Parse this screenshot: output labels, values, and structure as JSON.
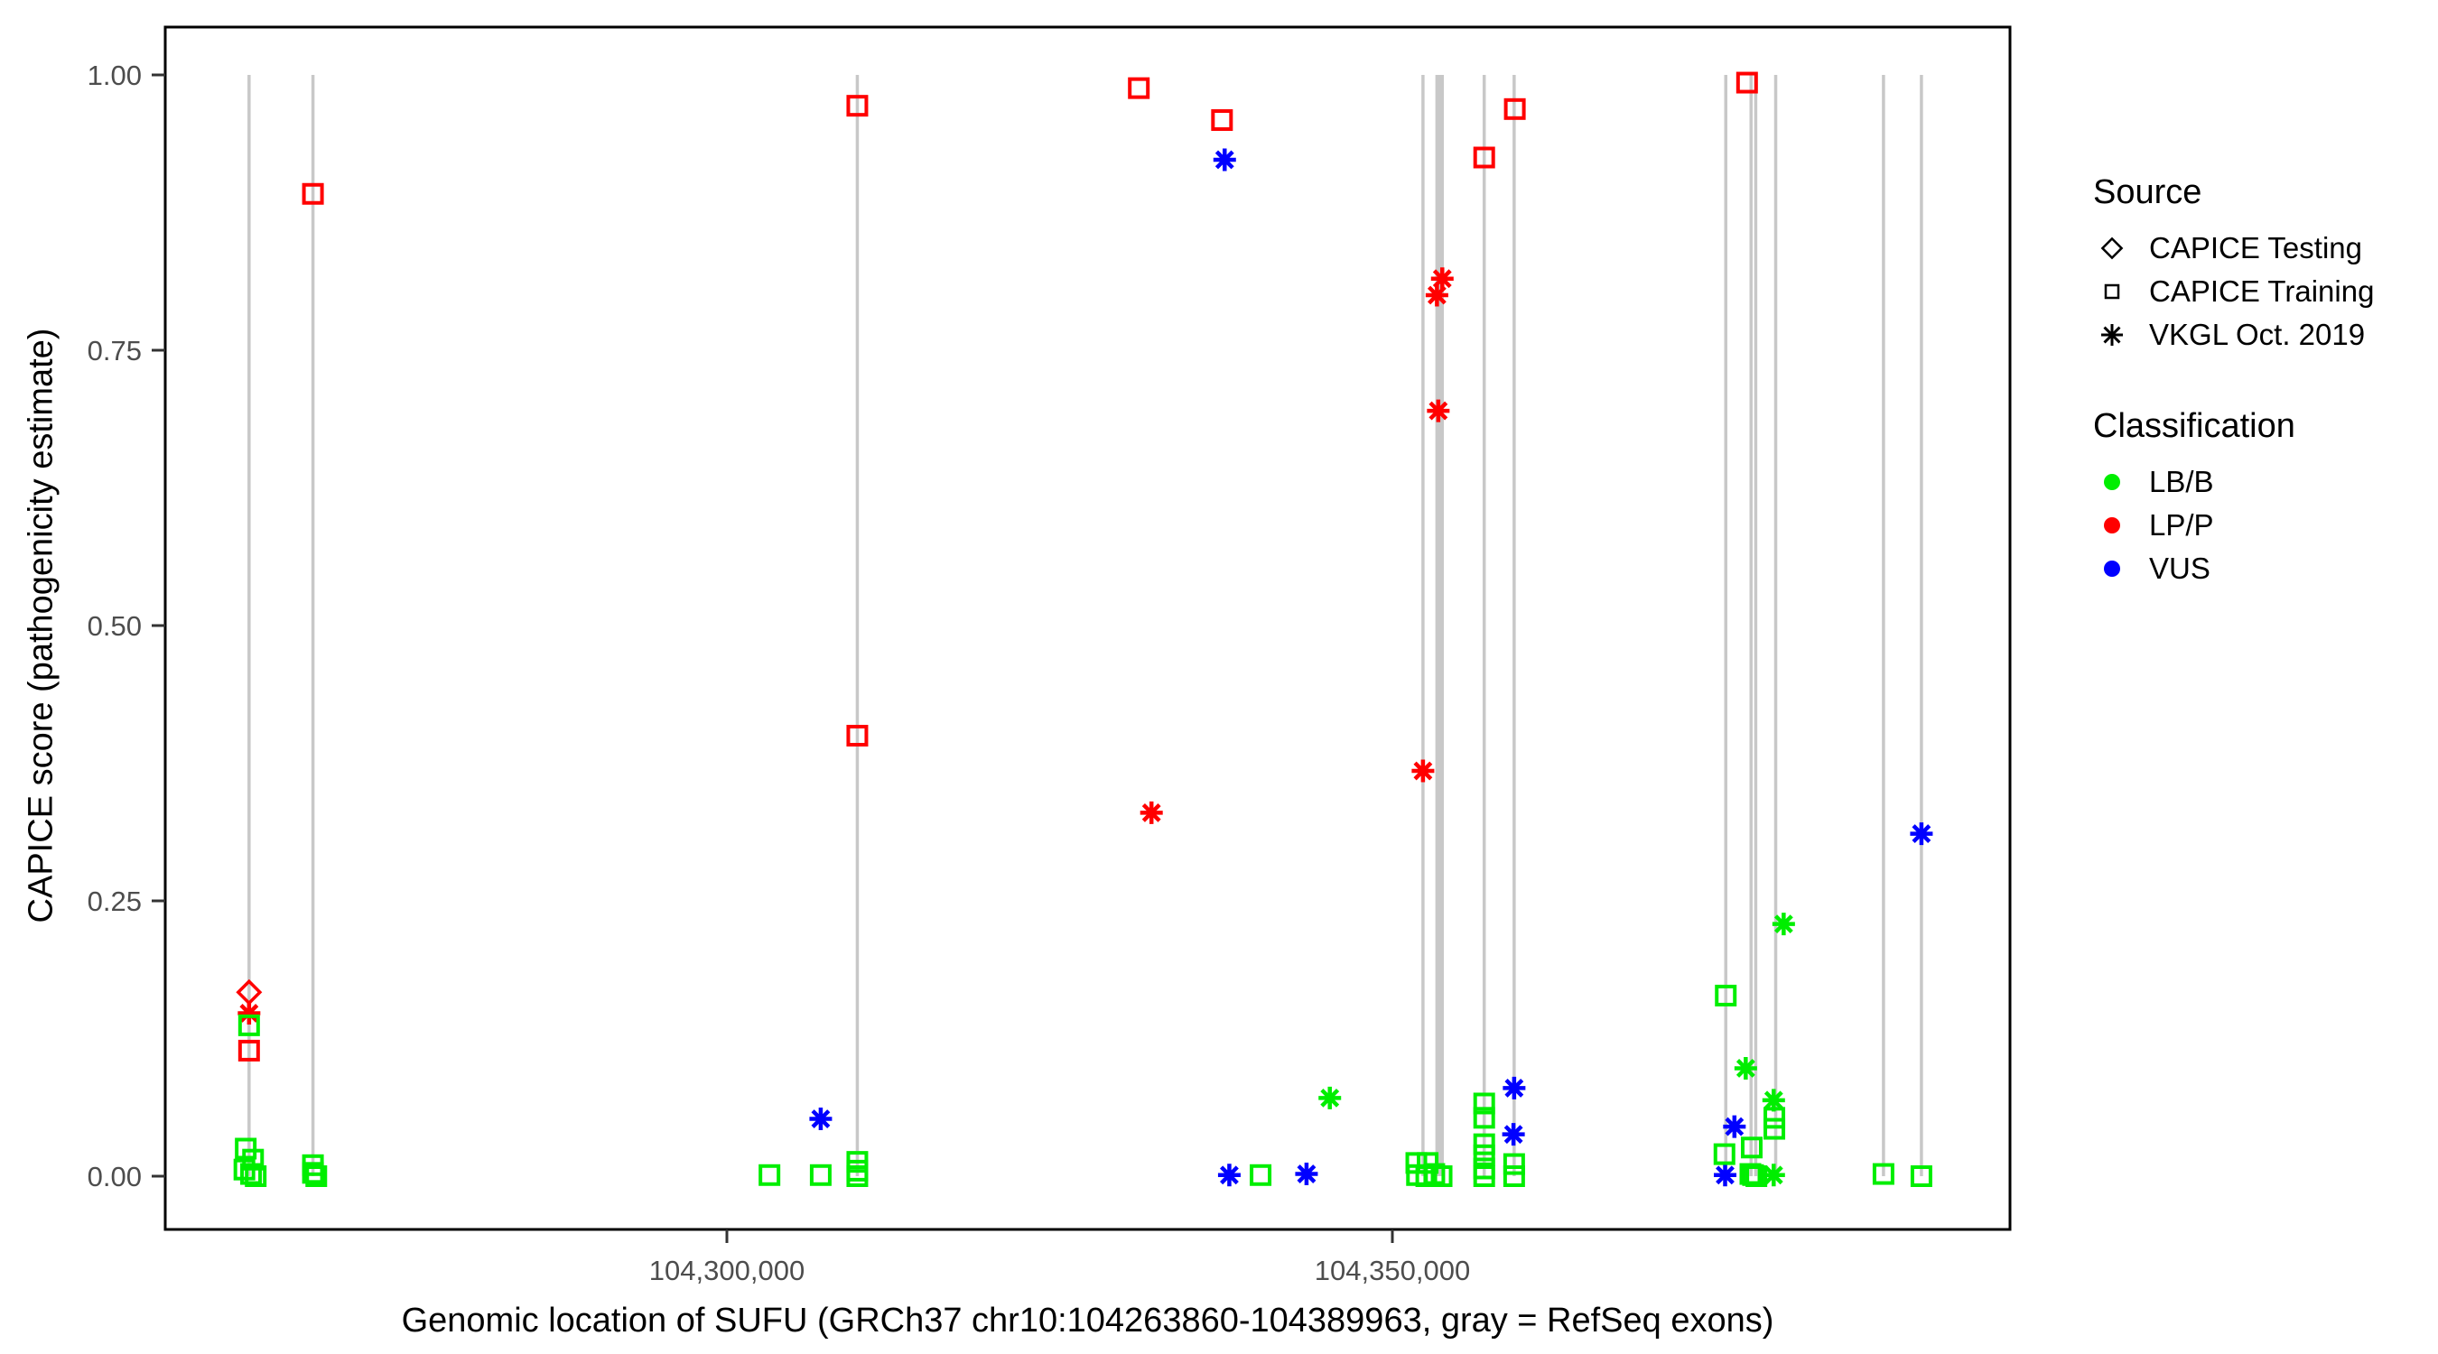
{
  "figure": {
    "background": "#ffffff",
    "x_axis": {
      "title": "Genomic location of SUFU (GRCh37 chr10:104263860-104389963, gray = RefSeq exons)"
    },
    "y_axis": {
      "title": "CAPICE score (pathogenicity estimate)"
    },
    "legend": {
      "source": {
        "title": "Source",
        "items": [
          {
            "label": "CAPICE Testing",
            "symbol": "diamond"
          },
          {
            "label": "CAPICE Training",
            "symbol": "square"
          },
          {
            "label": "VKGL Oct. 2019",
            "symbol": "asterisk"
          }
        ]
      },
      "classification": {
        "title": "Classification",
        "items": [
          {
            "label": "LB/B",
            "color": "#00EE00"
          },
          {
            "label": "LP/P",
            "color": "#FF0000"
          },
          {
            "label": "VUS",
            "color": "#0000FF"
          }
        ]
      }
    }
  },
  "chart_data": {
    "type": "scatter",
    "title": "",
    "xlabel": "Genomic location of SUFU (GRCh37 chr10:104263860-104389963, gray = RefSeq exons)",
    "ylabel": "CAPICE score (pathogenicity estimate)",
    "x_ticks": [
      {
        "value": 104300000,
        "label": "104,300,000"
      },
      {
        "value": 104350000,
        "label": "104,350,000"
      }
    ],
    "y_ticks": [
      {
        "value": 0.0,
        "label": "0.00"
      },
      {
        "value": 0.25,
        "label": "0.25"
      },
      {
        "value": 0.5,
        "label": "0.50"
      },
      {
        "value": 0.75,
        "label": "0.75"
      },
      {
        "value": 1.0,
        "label": "1.00"
      }
    ],
    "x_range": [
      104257700,
      104396500
    ],
    "y_range": [
      -0.05,
      1.05
    ],
    "grid": false,
    "legend_position": "right",
    "colors": {
      "LB/B": "#00EE00",
      "LP/P": "#FF0000",
      "VUS": "#0000FF"
    },
    "symbols": {
      "CAPICE Testing": "diamond",
      "CAPICE Training": "square",
      "VKGL Oct. 2019": "asterisk"
    },
    "exon_line_color": "#C8C8C8",
    "refseq_exons": [
      104264100,
      104268900,
      104309800,
      104352300,
      104353350,
      104353550,
      104353750,
      104356900,
      104359150,
      104375050,
      104376950,
      104377300,
      104378800,
      104386900,
      104389750
    ],
    "points": [
      {
        "pos": 104264100,
        "score": 0.167,
        "source": "CAPICE Testing",
        "class": "LP/P"
      },
      {
        "pos": 104264100,
        "score": 0.148,
        "source": "VKGL Oct. 2019",
        "class": "LP/P"
      },
      {
        "pos": 104331900,
        "score": 0.33,
        "source": "VKGL Oct. 2019",
        "class": "LP/P"
      },
      {
        "pos": 104352300,
        "score": 0.368,
        "source": "VKGL Oct. 2019",
        "class": "LP/P"
      },
      {
        "pos": 104353350,
        "score": 0.8,
        "source": "VKGL Oct. 2019",
        "class": "LP/P"
      },
      {
        "pos": 104353750,
        "score": 0.815,
        "source": "VKGL Oct. 2019",
        "class": "LP/P"
      },
      {
        "pos": 104353450,
        "score": 0.695,
        "source": "VKGL Oct. 2019",
        "class": "LP/P"
      },
      {
        "pos": 104264100,
        "score": 0.114,
        "source": "CAPICE Training",
        "class": "LP/P"
      },
      {
        "pos": 104268900,
        "score": 0.892,
        "source": "CAPICE Training",
        "class": "LP/P"
      },
      {
        "pos": 104309800,
        "score": 0.972,
        "source": "CAPICE Training",
        "class": "LP/P"
      },
      {
        "pos": 104309800,
        "score": 0.4,
        "source": "CAPICE Training",
        "class": "LP/P"
      },
      {
        "pos": 104330950,
        "score": 0.988,
        "source": "CAPICE Training",
        "class": "LP/P"
      },
      {
        "pos": 104337200,
        "score": 0.959,
        "source": "CAPICE Training",
        "class": "LP/P"
      },
      {
        "pos": 104356900,
        "score": 0.925,
        "source": "CAPICE Training",
        "class": "LP/P"
      },
      {
        "pos": 104359200,
        "score": 0.969,
        "source": "CAPICE Training",
        "class": "LP/P"
      },
      {
        "pos": 104376650,
        "score": 0.993,
        "source": "CAPICE Training",
        "class": "LP/P"
      },
      {
        "pos": 104307050,
        "score": 0.052,
        "source": "VKGL Oct. 2019",
        "class": "VUS"
      },
      {
        "pos": 104337400,
        "score": 0.923,
        "source": "VKGL Oct. 2019",
        "class": "VUS"
      },
      {
        "pos": 104337750,
        "score": 0.001,
        "source": "VKGL Oct. 2019",
        "class": "VUS"
      },
      {
        "pos": 104343550,
        "score": 0.002,
        "source": "VKGL Oct. 2019",
        "class": "VUS"
      },
      {
        "pos": 104359100,
        "score": 0.038,
        "source": "VKGL Oct. 2019",
        "class": "VUS"
      },
      {
        "pos": 104359150,
        "score": 0.08,
        "source": "VKGL Oct. 2019",
        "class": "VUS"
      },
      {
        "pos": 104375700,
        "score": 0.045,
        "source": "VKGL Oct. 2019",
        "class": "VUS"
      },
      {
        "pos": 104375000,
        "score": 0.001,
        "source": "VKGL Oct. 2019",
        "class": "VUS"
      },
      {
        "pos": 104389750,
        "score": 0.311,
        "source": "VKGL Oct. 2019",
        "class": "VUS"
      },
      {
        "pos": 104345300,
        "score": 0.071,
        "source": "VKGL Oct. 2019",
        "class": "LB/B"
      },
      {
        "pos": 104376550,
        "score": 0.098,
        "source": "VKGL Oct. 2019",
        "class": "LB/B"
      },
      {
        "pos": 104378650,
        "score": 0.069,
        "source": "VKGL Oct. 2019",
        "class": "LB/B"
      },
      {
        "pos": 104379400,
        "score": 0.229,
        "source": "VKGL Oct. 2019",
        "class": "LB/B"
      },
      {
        "pos": 104378650,
        "score": 0.001,
        "source": "VKGL Oct. 2019",
        "class": "LB/B"
      },
      {
        "pos": 104264100,
        "score": 0.137,
        "source": "CAPICE Training",
        "class": "LB/B"
      },
      {
        "pos": 104263850,
        "score": 0.025,
        "source": "CAPICE Training",
        "class": "LB/B"
      },
      {
        "pos": 104264400,
        "score": 0.015,
        "source": "CAPICE Training",
        "class": "LB/B"
      },
      {
        "pos": 104263750,
        "score": 0.006,
        "source": "CAPICE Training",
        "class": "LB/B"
      },
      {
        "pos": 104264250,
        "score": 0.002,
        "source": "CAPICE Training",
        "class": "LB/B"
      },
      {
        "pos": 104264600,
        "score": 0.0,
        "source": "CAPICE Training",
        "class": "LB/B"
      },
      {
        "pos": 104268900,
        "score": 0.01,
        "source": "CAPICE Training",
        "class": "LB/B"
      },
      {
        "pos": 104268900,
        "score": 0.003,
        "source": "CAPICE Training",
        "class": "LB/B"
      },
      {
        "pos": 104269150,
        "score": 0.0,
        "source": "CAPICE Training",
        "class": "LB/B"
      },
      {
        "pos": 104303200,
        "score": 0.001,
        "source": "CAPICE Training",
        "class": "LB/B"
      },
      {
        "pos": 104307050,
        "score": 0.001,
        "source": "CAPICE Training",
        "class": "LB/B"
      },
      {
        "pos": 104309800,
        "score": 0.013,
        "source": "CAPICE Training",
        "class": "LB/B"
      },
      {
        "pos": 104309800,
        "score": 0.005,
        "source": "CAPICE Training",
        "class": "LB/B"
      },
      {
        "pos": 104309800,
        "score": 0.0,
        "source": "CAPICE Training",
        "class": "LB/B"
      },
      {
        "pos": 104340100,
        "score": 0.001,
        "source": "CAPICE Training",
        "class": "LB/B"
      },
      {
        "pos": 104351800,
        "score": 0.012,
        "source": "CAPICE Training",
        "class": "LB/B"
      },
      {
        "pos": 104352650,
        "score": 0.012,
        "source": "CAPICE Training",
        "class": "LB/B"
      },
      {
        "pos": 104351850,
        "score": 0.001,
        "source": "CAPICE Training",
        "class": "LB/B"
      },
      {
        "pos": 104352550,
        "score": 0.0,
        "source": "CAPICE Training",
        "class": "LB/B"
      },
      {
        "pos": 104353150,
        "score": 0.002,
        "source": "CAPICE Training",
        "class": "LB/B"
      },
      {
        "pos": 104353700,
        "score": 0.0,
        "source": "CAPICE Training",
        "class": "LB/B"
      },
      {
        "pos": 104356900,
        "score": 0.066,
        "source": "CAPICE Training",
        "class": "LB/B"
      },
      {
        "pos": 104356900,
        "score": 0.053,
        "source": "CAPICE Training",
        "class": "LB/B"
      },
      {
        "pos": 104356900,
        "score": 0.029,
        "source": "CAPICE Training",
        "class": "LB/B"
      },
      {
        "pos": 104356900,
        "score": 0.019,
        "source": "CAPICE Training",
        "class": "LB/B"
      },
      {
        "pos": 104356900,
        "score": 0.007,
        "source": "CAPICE Training",
        "class": "LB/B"
      },
      {
        "pos": 104356900,
        "score": 0.0,
        "source": "CAPICE Training",
        "class": "LB/B"
      },
      {
        "pos": 104359150,
        "score": 0.011,
        "source": "CAPICE Training",
        "class": "LB/B"
      },
      {
        "pos": 104359150,
        "score": 0.0,
        "source": "CAPICE Training",
        "class": "LB/B"
      },
      {
        "pos": 104375050,
        "score": 0.164,
        "source": "CAPICE Training",
        "class": "LB/B"
      },
      {
        "pos": 104374950,
        "score": 0.02,
        "source": "CAPICE Training",
        "class": "LB/B"
      },
      {
        "pos": 104377000,
        "score": 0.026,
        "source": "CAPICE Training",
        "class": "LB/B"
      },
      {
        "pos": 104378700,
        "score": 0.053,
        "source": "CAPICE Training",
        "class": "LB/B"
      },
      {
        "pos": 104378700,
        "score": 0.043,
        "source": "CAPICE Training",
        "class": "LB/B"
      },
      {
        "pos": 104376900,
        "score": 0.002,
        "source": "CAPICE Training",
        "class": "LB/B"
      },
      {
        "pos": 104377100,
        "score": 0.001,
        "source": "CAPICE Training",
        "class": "LB/B"
      },
      {
        "pos": 104377350,
        "score": 0.0,
        "source": "CAPICE Training",
        "class": "LB/B"
      },
      {
        "pos": 104386900,
        "score": 0.002,
        "source": "CAPICE Training",
        "class": "LB/B"
      },
      {
        "pos": 104389750,
        "score": 0.0,
        "source": "CAPICE Training",
        "class": "LB/B"
      }
    ]
  }
}
